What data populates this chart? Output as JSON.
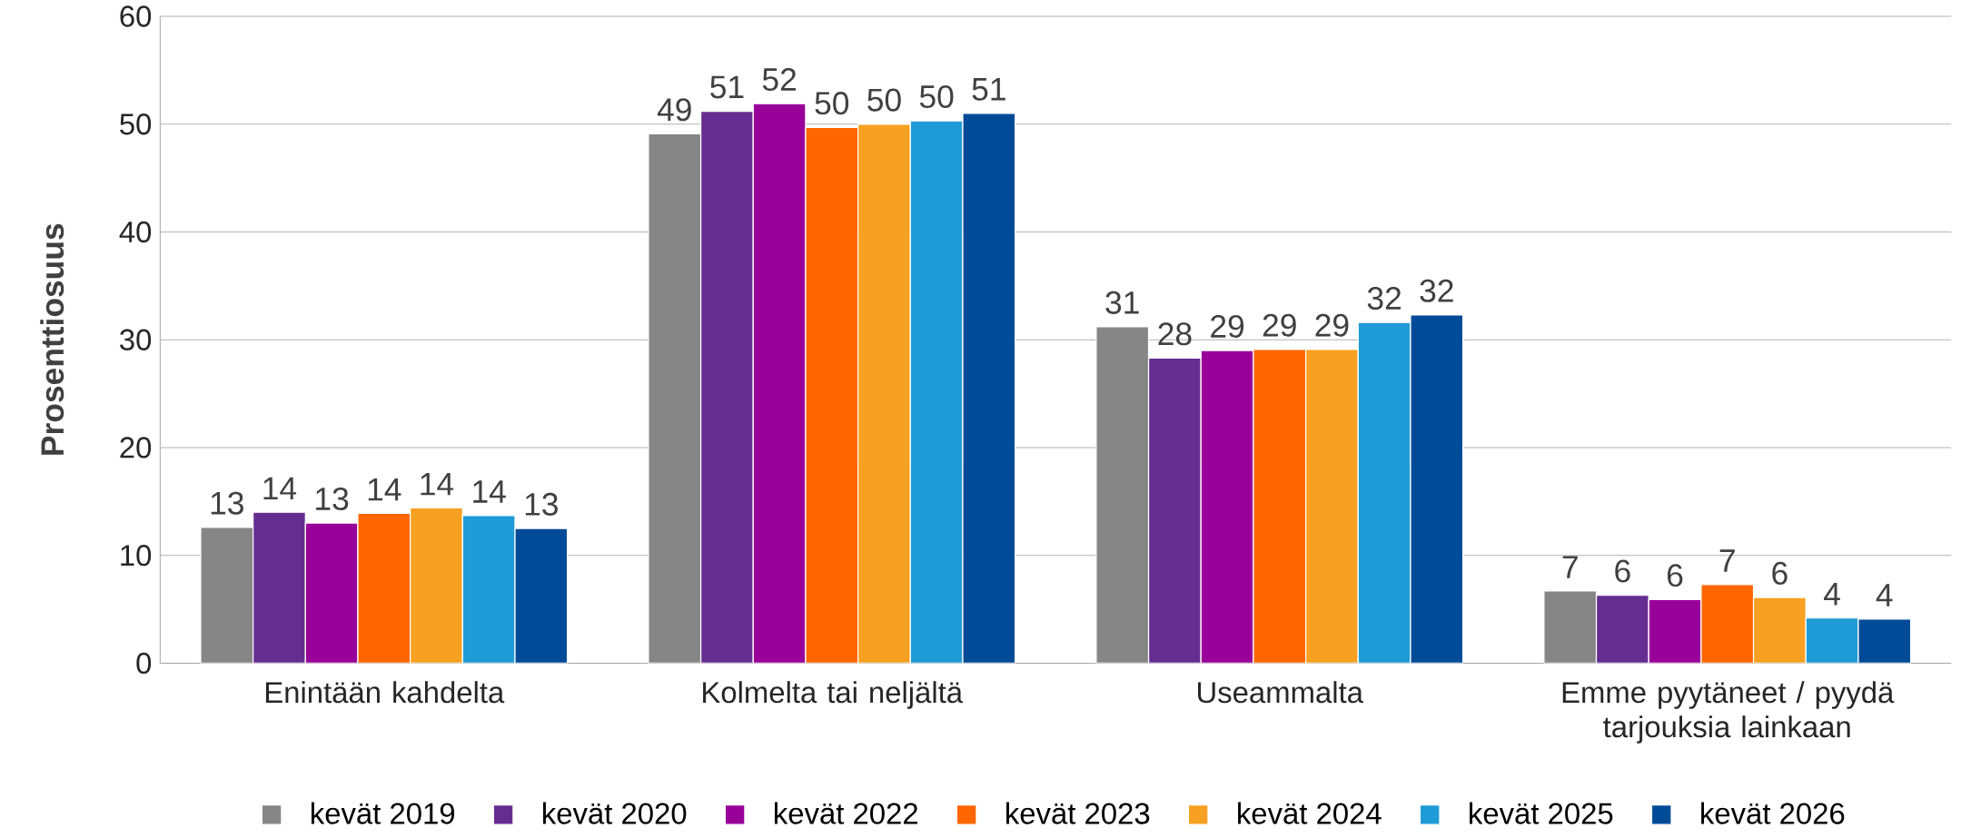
{
  "chart_data": {
    "type": "bar",
    "ylabel": "Prosenttiosuus",
    "categories": [
      "Enintään kahdelta",
      "Kolmelta tai neljältä",
      "Useammalta",
      "Emme pyytäneet / pyydä tarjouksia lainkaan"
    ],
    "series": [
      {
        "name": "kevät 2019",
        "color": "#868686",
        "values": [
          12.6,
          49.1,
          31.2,
          6.7
        ],
        "value_labels": [
          "13",
          "49",
          "31",
          "7"
        ]
      },
      {
        "name": "kevät 2020",
        "color": "#662d91",
        "values": [
          14.0,
          51.2,
          28.3,
          6.3
        ],
        "value_labels": [
          "14",
          "51",
          "28",
          "6"
        ]
      },
      {
        "name": "kevät 2022",
        "color": "#990099",
        "values": [
          13.0,
          51.9,
          29.0,
          5.9
        ],
        "value_labels": [
          "13",
          "52",
          "29",
          "6"
        ]
      },
      {
        "name": "kevät 2023",
        "color": "#ff6600",
        "values": [
          13.9,
          49.7,
          29.1,
          7.3
        ],
        "value_labels": [
          "14",
          "50",
          "29",
          "7"
        ]
      },
      {
        "name": "kevät 2024",
        "color": "#f7a021",
        "values": [
          14.4,
          50.0,
          29.1,
          6.1
        ],
        "value_labels": [
          "14",
          "50",
          "29",
          "6"
        ]
      },
      {
        "name": "kevät 2025",
        "color": "#1f9bd7",
        "values": [
          13.7,
          50.3,
          31.6,
          4.2
        ],
        "value_labels": [
          "14",
          "50",
          "32",
          "4"
        ]
      },
      {
        "name": "kevät 2026",
        "color": "#004b98",
        "values": [
          12.5,
          51.0,
          32.3,
          4.1
        ],
        "value_labels": [
          "13",
          "51",
          "32",
          "4"
        ]
      }
    ],
    "ylim": [
      0,
      60
    ],
    "yticks": [
      0,
      10,
      20,
      30,
      40,
      50,
      60
    ],
    "grid": "y",
    "legend": "bottom"
  }
}
